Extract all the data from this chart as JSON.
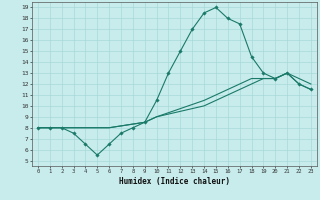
{
  "title": "",
  "xlabel": "Humidex (Indice chaleur)",
  "xlim": [
    -0.5,
    23.5
  ],
  "ylim": [
    4.5,
    19.5
  ],
  "xticks": [
    0,
    1,
    2,
    3,
    4,
    5,
    6,
    7,
    8,
    9,
    10,
    11,
    12,
    13,
    14,
    15,
    16,
    17,
    18,
    19,
    20,
    21,
    22,
    23
  ],
  "yticks": [
    5,
    6,
    7,
    8,
    9,
    10,
    11,
    12,
    13,
    14,
    15,
    16,
    17,
    18,
    19
  ],
  "bg_color": "#c8ecec",
  "grid_color": "#a8d8d8",
  "line_color": "#1a7a6a",
  "curve1_x": [
    0,
    1,
    2,
    3,
    4,
    5,
    6,
    7,
    8,
    9,
    10,
    11,
    12,
    13,
    14,
    15,
    16,
    17,
    18,
    19,
    20,
    21,
    22,
    23
  ],
  "curve1_y": [
    8,
    8,
    8,
    7.5,
    6.5,
    5.5,
    6.5,
    7.5,
    8.0,
    8.5,
    10.5,
    13.0,
    15.0,
    17.0,
    18.5,
    19.0,
    18.0,
    17.5,
    14.5,
    13.0,
    12.5,
    13.0,
    12.0,
    11.5
  ],
  "curve2_x": [
    0,
    1,
    2,
    3,
    5,
    6,
    9,
    10,
    14,
    15,
    16,
    17,
    18,
    19,
    20,
    21,
    22,
    23
  ],
  "curve2_y": [
    8,
    8,
    8,
    8,
    8,
    8,
    8.5,
    9.0,
    10.5,
    11.0,
    11.5,
    12.0,
    12.5,
    12.5,
    12.5,
    13.0,
    12.0,
    11.5
  ],
  "curve3_x": [
    0,
    3,
    5,
    6,
    9,
    10,
    14,
    15,
    16,
    17,
    18,
    19,
    20,
    21,
    22,
    23
  ],
  "curve3_y": [
    8,
    8,
    8,
    8,
    8.5,
    9.0,
    10.0,
    10.5,
    11.0,
    11.5,
    12.0,
    12.5,
    12.5,
    13.0,
    12.5,
    12.0
  ]
}
